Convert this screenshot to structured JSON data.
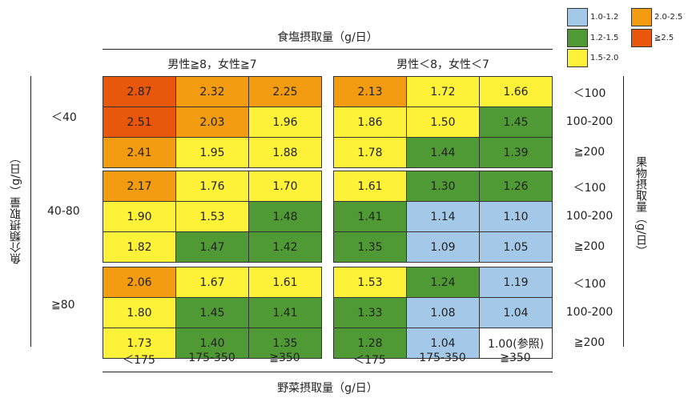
{
  "colors": {
    "c1": "#a4c8e8",
    "c2": "#4f9a34",
    "c3": "#fdf237",
    "c4": "#f39c12",
    "c5": "#e8570c",
    "ref": "#ffffff"
  },
  "legend": [
    {
      "label": "1.0-1.2",
      "color_key": "c1"
    },
    {
      "label": "1.2-1.5",
      "color_key": "c2"
    },
    {
      "label": "1.5-2.0",
      "color_key": "c3"
    },
    {
      "label": "2.0-2.5",
      "color_key": "c4"
    },
    {
      "label": "≧2.5",
      "color_key": "c5"
    }
  ],
  "chart_data": {
    "type": "heatmap",
    "salt_axis_label": "食塩摂取量（g/日）",
    "salt_groups": [
      "男性≧8，女性≧7",
      "男性＜8，女性＜7"
    ],
    "fish_axis_label": "魚介類摂取量（g/日）",
    "fish_groups": [
      "＜40",
      "40-80",
      "≧80"
    ],
    "fruit_axis_label": "果物摂取量（g/日）",
    "fruit_levels": [
      "＜100",
      "100-200",
      "≧200"
    ],
    "vegetable_axis_label": "野菜摂取量（g/日）",
    "vegetable_levels": [
      "＜175",
      "175-350",
      "≧350"
    ],
    "reference_label": "1.00(参照)",
    "values": [
      [
        [
          [
            2.87,
            2.32,
            2.25
          ],
          [
            2.51,
            2.03,
            1.96
          ],
          [
            2.41,
            1.95,
            1.88
          ]
        ],
        [
          [
            2.13,
            1.72,
            1.66
          ],
          [
            1.86,
            1.5,
            1.45
          ],
          [
            1.78,
            1.44,
            1.39
          ]
        ]
      ],
      [
        [
          [
            2.17,
            1.76,
            1.7
          ],
          [
            1.9,
            1.53,
            1.48
          ],
          [
            1.82,
            1.47,
            1.42
          ]
        ],
        [
          [
            1.61,
            1.3,
            1.26
          ],
          [
            1.41,
            1.14,
            1.1
          ],
          [
            1.35,
            1.09,
            1.05
          ]
        ]
      ],
      [
        [
          [
            2.06,
            1.67,
            1.61
          ],
          [
            1.8,
            1.45,
            1.41
          ],
          [
            1.73,
            1.4,
            1.35
          ]
        ],
        [
          [
            1.53,
            1.24,
            1.19
          ],
          [
            1.33,
            1.08,
            1.04
          ],
          [
            1.28,
            1.04,
            1.0
          ]
        ]
      ]
    ]
  }
}
